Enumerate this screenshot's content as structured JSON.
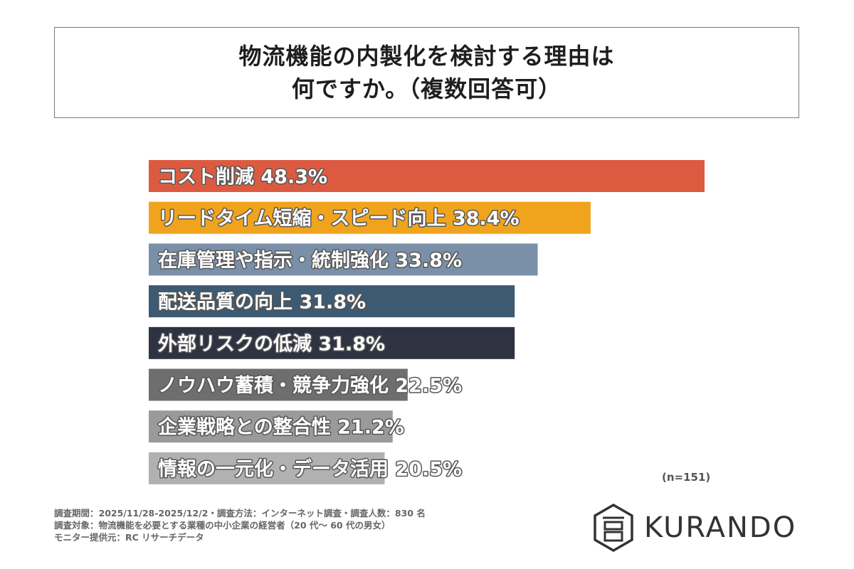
{
  "title": {
    "line1": "物流機能の内製化を検討する理由は",
    "line2": "何ですか。（複数回答可）"
  },
  "chart_data": {
    "type": "bar",
    "orientation": "horizontal",
    "unit": "%",
    "categories": [
      "コスト削減",
      "リードタイム短縮・スピード向上",
      "在庫管理や指示・統制強化",
      "配送品質の向上",
      "外部リスクの低減",
      "ノウハウ蓄積・競争力強化",
      "企業戦略との整合性",
      "情報の一元化・データ活用"
    ],
    "values": [
      48.3,
      38.4,
      33.8,
      31.8,
      31.8,
      22.5,
      21.2,
      20.5
    ],
    "colors": [
      "#DC5B40",
      "#F0A41E",
      "#7A90A8",
      "#3D5A73",
      "#2E3342",
      "#6E6E6E",
      "#9A9A9A",
      "#B1B1B1"
    ],
    "xlim": [
      0,
      48.3
    ],
    "grid": false,
    "legend": "none"
  },
  "sample_note": "(n=151)",
  "footnotes": [
    "調査期間：2025/11/28-2025/12/2・調査方法：インターネット調査・調査人数：830 名",
    "調査対象：物流機能を必要とする業種の中小企業の経営者（20 代〜 60 代の男女）",
    "モニター提供元：RC リサーチデータ"
  ],
  "logo": {
    "text": "KURANDO",
    "icon": "kurando-hexagon-logo-icon"
  }
}
